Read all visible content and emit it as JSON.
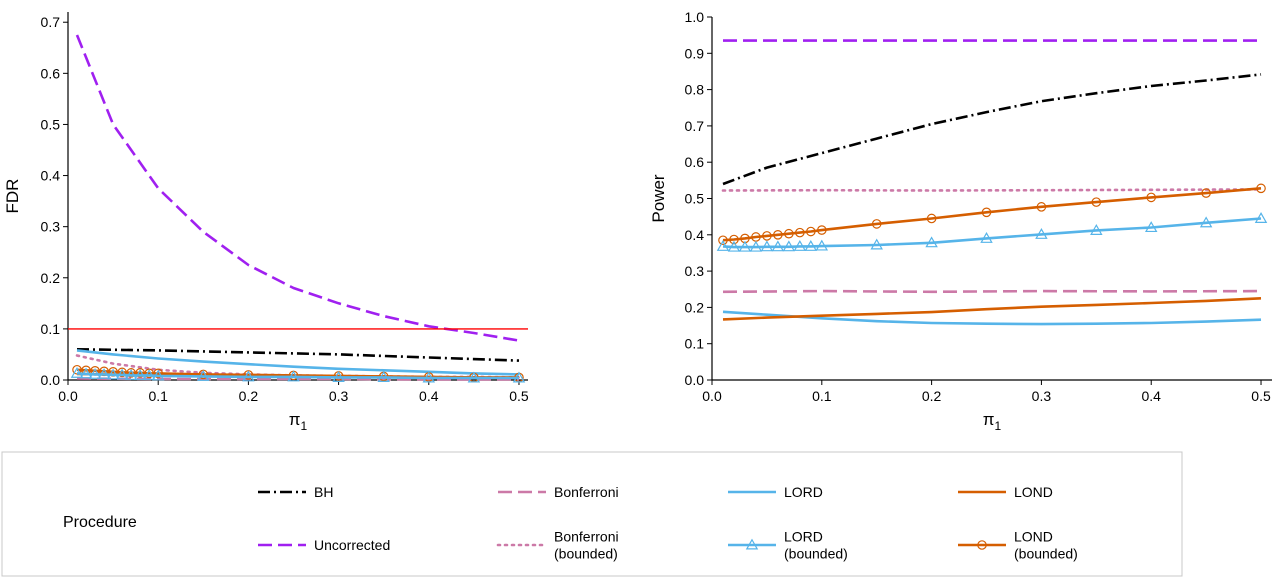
{
  "chart_data": [
    {
      "type": "line",
      "xlabel": "π",
      "xlabel_sub": "1",
      "ylabel": "FDR",
      "xlim": [
        0,
        0.51
      ],
      "ylim": [
        0,
        0.72
      ],
      "xticks": [
        0.0,
        0.1,
        0.2,
        0.3,
        0.4,
        0.5
      ],
      "xtick_labels": [
        "0.0",
        "0.1",
        "0.2",
        "0.3",
        "0.4",
        "0.5"
      ],
      "yticks": [
        0.0,
        0.1,
        0.2,
        0.3,
        0.4,
        0.5,
        0.6,
        0.7
      ],
      "ytick_labels": [
        "0.0",
        "0.1",
        "0.2",
        "0.3",
        "0.4",
        "0.5",
        "0.6",
        "0.7"
      ],
      "hline": {
        "y": 0.1,
        "color": "#ff0000"
      },
      "series": [
        {
          "name": "Uncorrected",
          "style": "uncorrected",
          "x": [
            0.01,
            0.05,
            0.1,
            0.15,
            0.2,
            0.25,
            0.3,
            0.35,
            0.4,
            0.45,
            0.5
          ],
          "y": [
            0.675,
            0.5,
            0.375,
            0.29,
            0.225,
            0.18,
            0.15,
            0.125,
            0.105,
            0.092,
            0.077
          ]
        },
        {
          "name": "BH",
          "style": "bh",
          "x": [
            0.01,
            0.1,
            0.2,
            0.3,
            0.4,
            0.5
          ],
          "y": [
            0.06,
            0.058,
            0.054,
            0.05,
            0.044,
            0.038
          ]
        },
        {
          "name": "LORD",
          "style": "lord",
          "x": [
            0.01,
            0.05,
            0.1,
            0.15,
            0.2,
            0.25,
            0.3,
            0.35,
            0.4,
            0.45,
            0.5
          ],
          "y": [
            0.058,
            0.05,
            0.042,
            0.036,
            0.031,
            0.026,
            0.022,
            0.019,
            0.016,
            0.013,
            0.011
          ]
        },
        {
          "name": "Bonferroni (bounded)",
          "style": "bonfbounded",
          "x": [
            0.01,
            0.05,
            0.1,
            0.15,
            0.2,
            0.25,
            0.3,
            0.35,
            0.4,
            0.45,
            0.5
          ],
          "y": [
            0.048,
            0.032,
            0.02,
            0.014,
            0.011,
            0.009,
            0.008,
            0.007,
            0.006,
            0.006,
            0.005
          ]
        },
        {
          "name": "LOND",
          "style": "lond",
          "x": [
            0.01,
            0.1,
            0.2,
            0.3,
            0.4,
            0.5
          ],
          "y": [
            0.012,
            0.009,
            0.007,
            0.006,
            0.005,
            0.004
          ]
        },
        {
          "name": "Bonferroni",
          "style": "bonf",
          "x": [
            0.01,
            0.1,
            0.2,
            0.3,
            0.4,
            0.5
          ],
          "y": [
            0.003,
            0.002,
            0.002,
            0.002,
            0.001,
            0.001
          ]
        },
        {
          "name": "LOND (bounded)",
          "style": "londbounded",
          "x": [
            0.01,
            0.02,
            0.03,
            0.04,
            0.05,
            0.06,
            0.07,
            0.08,
            0.09,
            0.1,
            0.15,
            0.2,
            0.25,
            0.3,
            0.35,
            0.4,
            0.45,
            0.5
          ],
          "y": [
            0.02,
            0.019,
            0.018,
            0.017,
            0.016,
            0.015,
            0.014,
            0.014,
            0.013,
            0.013,
            0.011,
            0.01,
            0.009,
            0.008,
            0.007,
            0.006,
            0.005,
            0.005
          ]
        },
        {
          "name": "LORD (bounded)",
          "style": "lordbounded",
          "x": [
            0.01,
            0.02,
            0.03,
            0.04,
            0.05,
            0.06,
            0.07,
            0.08,
            0.09,
            0.1,
            0.15,
            0.2,
            0.25,
            0.3,
            0.35,
            0.4,
            0.45,
            0.5
          ],
          "y": [
            0.013,
            0.012,
            0.011,
            0.011,
            0.01,
            0.01,
            0.009,
            0.009,
            0.009,
            0.008,
            0.007,
            0.006,
            0.006,
            0.005,
            0.005,
            0.004,
            0.004,
            0.004
          ]
        }
      ]
    },
    {
      "type": "line",
      "xlabel": "π",
      "xlabel_sub": "1",
      "ylabel": "Power",
      "xlim": [
        0,
        0.51
      ],
      "ylim": [
        0,
        1.0
      ],
      "xticks": [
        0.0,
        0.1,
        0.2,
        0.3,
        0.4,
        0.5
      ],
      "xtick_labels": [
        "0.0",
        "0.1",
        "0.2",
        "0.3",
        "0.4",
        "0.5"
      ],
      "yticks": [
        0.0,
        0.1,
        0.2,
        0.3,
        0.4,
        0.5,
        0.6,
        0.7,
        0.8,
        0.9,
        1.0
      ],
      "ytick_labels": [
        "0.0",
        "0.1",
        "0.2",
        "0.3",
        "0.4",
        "0.5",
        "0.6",
        "0.7",
        "0.8",
        "0.9",
        "1.0"
      ],
      "series": [
        {
          "name": "Uncorrected",
          "style": "uncorrected",
          "x": [
            0.01,
            0.1,
            0.2,
            0.3,
            0.4,
            0.5
          ],
          "y": [
            0.935,
            0.935,
            0.935,
            0.935,
            0.935,
            0.935
          ]
        },
        {
          "name": "BH",
          "style": "bh",
          "x": [
            0.01,
            0.05,
            0.1,
            0.15,
            0.2,
            0.25,
            0.3,
            0.35,
            0.4,
            0.45,
            0.5
          ],
          "y": [
            0.54,
            0.585,
            0.625,
            0.665,
            0.705,
            0.738,
            0.768,
            0.79,
            0.81,
            0.825,
            0.842
          ]
        },
        {
          "name": "Bonferroni (bounded)",
          "style": "bonfbounded",
          "x": [
            0.01,
            0.1,
            0.2,
            0.3,
            0.4,
            0.5
          ],
          "y": [
            0.522,
            0.523,
            0.522,
            0.523,
            0.524,
            0.525
          ]
        },
        {
          "name": "LOND (bounded)",
          "style": "londbounded",
          "x": [
            0.01,
            0.02,
            0.03,
            0.04,
            0.05,
            0.06,
            0.07,
            0.08,
            0.09,
            0.1,
            0.15,
            0.2,
            0.25,
            0.3,
            0.35,
            0.4,
            0.45,
            0.5
          ],
          "y": [
            0.385,
            0.387,
            0.39,
            0.394,
            0.397,
            0.4,
            0.403,
            0.406,
            0.409,
            0.413,
            0.43,
            0.445,
            0.462,
            0.477,
            0.49,
            0.503,
            0.515,
            0.528
          ]
        },
        {
          "name": "LORD (bounded)",
          "style": "lordbounded",
          "x": [
            0.01,
            0.02,
            0.03,
            0.04,
            0.05,
            0.06,
            0.07,
            0.08,
            0.09,
            0.1,
            0.15,
            0.2,
            0.25,
            0.3,
            0.35,
            0.4,
            0.45,
            0.5
          ],
          "y": [
            0.368,
            0.366,
            0.366,
            0.366,
            0.367,
            0.367,
            0.367,
            0.368,
            0.368,
            0.369,
            0.372,
            0.378,
            0.39,
            0.401,
            0.412,
            0.42,
            0.433,
            0.445
          ]
        },
        {
          "name": "Bonferroni",
          "style": "bonf",
          "x": [
            0.01,
            0.1,
            0.2,
            0.3,
            0.4,
            0.5
          ],
          "y": [
            0.243,
            0.245,
            0.243,
            0.245,
            0.244,
            0.245
          ]
        },
        {
          "name": "LORD",
          "style": "lord",
          "x": [
            0.01,
            0.05,
            0.1,
            0.15,
            0.2,
            0.25,
            0.3,
            0.35,
            0.4,
            0.45,
            0.5
          ],
          "y": [
            0.188,
            0.18,
            0.17,
            0.162,
            0.157,
            0.155,
            0.154,
            0.155,
            0.157,
            0.161,
            0.166
          ]
        },
        {
          "name": "LOND",
          "style": "lond",
          "x": [
            0.01,
            0.05,
            0.1,
            0.15,
            0.2,
            0.25,
            0.3,
            0.35,
            0.4,
            0.45,
            0.5
          ],
          "y": [
            0.167,
            0.172,
            0.177,
            0.182,
            0.187,
            0.195,
            0.202,
            0.207,
            0.212,
            0.218,
            0.225
          ]
        }
      ]
    }
  ],
  "styles": {
    "bh": {
      "color": "#000000",
      "dash": "12,4,2,4",
      "marker": "none"
    },
    "uncorrected": {
      "color": "#a020f0",
      "dash": "14,6",
      "marker": "none"
    },
    "bonf": {
      "color": "#cc79a7",
      "dash": "14,6",
      "marker": "none"
    },
    "bonfbounded": {
      "color": "#cc79a7",
      "dash": "2,5",
      "marker": "none"
    },
    "lord": {
      "color": "#56b4e9",
      "dash": "",
      "marker": "none"
    },
    "lordbounded": {
      "color": "#56b4e9",
      "dash": "",
      "marker": "triangle"
    },
    "lond": {
      "color": "#d55e00",
      "dash": "",
      "marker": "none"
    },
    "londbounded": {
      "color": "#d55e00",
      "dash": "",
      "marker": "circle"
    }
  },
  "legend": {
    "title": "Procedure",
    "items": [
      {
        "style": "bh",
        "label": "BH"
      },
      {
        "style": "uncorrected",
        "label": "Uncorrected"
      },
      {
        "style": "bonf",
        "label": "Bonferroni"
      },
      {
        "style": "bonfbounded",
        "label": "Bonferroni\n(bounded)"
      },
      {
        "style": "lord",
        "label": "LORD"
      },
      {
        "style": "lordbounded",
        "label": "LORD\n(bounded)"
      },
      {
        "style": "lond",
        "label": "LOND"
      },
      {
        "style": "londbounded",
        "label": "LOND\n(bounded)"
      }
    ]
  }
}
